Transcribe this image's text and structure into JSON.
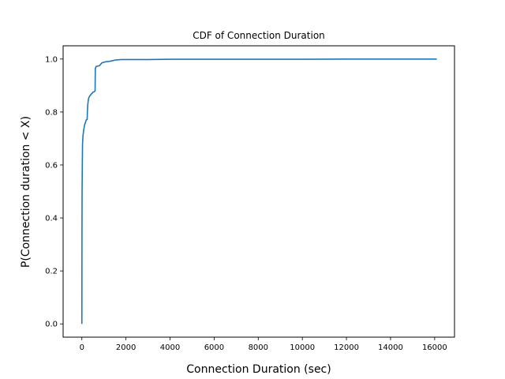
{
  "chart_data": {
    "type": "line",
    "title": "CDF of Connection Duration",
    "xlabel": "Connection Duration (sec)",
    "ylabel": "P(Connection duration < X)",
    "xlim": [
      -850,
      16900
    ],
    "ylim": [
      -0.05,
      1.05
    ],
    "xticks": [
      0,
      2000,
      4000,
      6000,
      8000,
      10000,
      12000,
      14000,
      16000
    ],
    "yticks": [
      0.0,
      0.2,
      0.4,
      0.6,
      0.8,
      1.0
    ],
    "xtick_labels": [
      "0",
      "2000",
      "4000",
      "6000",
      "8000",
      "10000",
      "12000",
      "14000",
      "16000"
    ],
    "ytick_labels": [
      "0.0",
      "0.2",
      "0.4",
      "0.6",
      "0.8",
      "1.0"
    ],
    "grid": false,
    "legend": "none",
    "series": [
      {
        "color": "#1f77b4",
        "x": [
          0,
          2,
          5,
          10,
          20,
          30,
          50,
          80,
          120,
          160,
          200,
          240,
          250,
          270,
          300,
          350,
          400,
          450,
          500,
          550,
          580,
          600,
          610,
          650,
          700,
          750,
          800,
          850,
          900,
          1000,
          1100,
          1200,
          1300,
          1400,
          1500,
          1600,
          1800,
          2000,
          2500,
          3000,
          4000,
          6000,
          8000,
          10000,
          12000,
          14000,
          16100
        ],
        "y": [
          0.0,
          0.15,
          0.35,
          0.5,
          0.6,
          0.68,
          0.71,
          0.73,
          0.75,
          0.76,
          0.77,
          0.772,
          0.8,
          0.83,
          0.85,
          0.86,
          0.865,
          0.87,
          0.875,
          0.876,
          0.878,
          0.88,
          0.965,
          0.972,
          0.973,
          0.974,
          0.975,
          0.98,
          0.985,
          0.988,
          0.99,
          0.991,
          0.992,
          0.994,
          0.996,
          0.997,
          0.998,
          0.998,
          0.998,
          0.998,
          0.999,
          0.999,
          0.999,
          0.999,
          1.0,
          1.0,
          1.0
        ]
      }
    ]
  }
}
